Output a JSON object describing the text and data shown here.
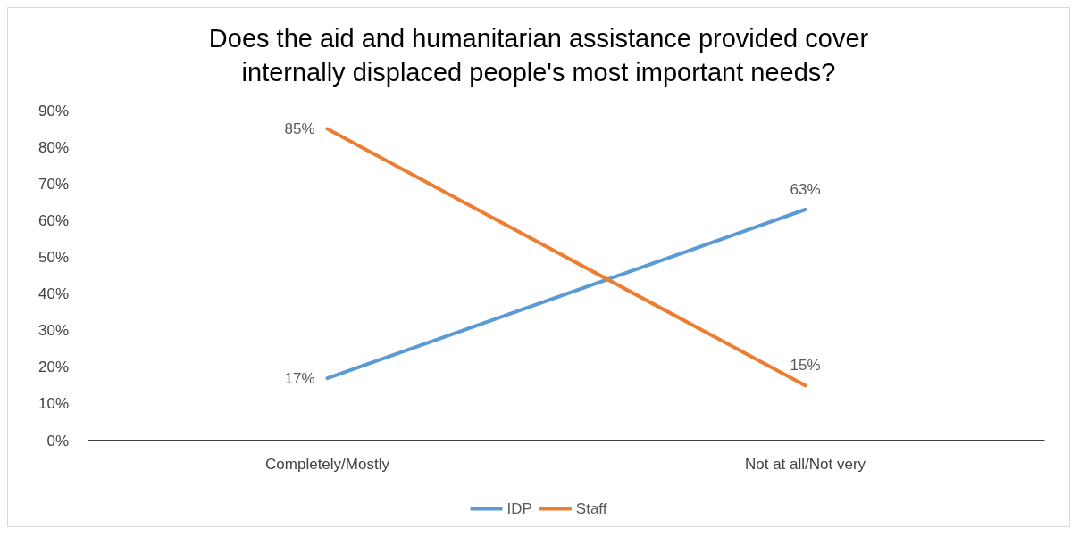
{
  "chart_data": {
    "type": "line",
    "title": "Does the aid and humanitarian assistance provided cover\ninternally displaced people's most important needs?",
    "categories": [
      "Completely/Mostly",
      "Not at all/Not very"
    ],
    "series": [
      {
        "name": "IDP",
        "color": "#5b9bd5",
        "values": [
          17,
          63
        ],
        "value_labels": [
          "17%",
          "63%"
        ]
      },
      {
        "name": "Staff",
        "color": "#ed7d31",
        "values": [
          85,
          15
        ],
        "value_labels": [
          "85%",
          "15%"
        ]
      }
    ],
    "ylim": [
      0,
      90
    ],
    "yticks": [
      {
        "value": 0,
        "label": "0%"
      },
      {
        "value": 10,
        "label": "10%"
      },
      {
        "value": 20,
        "label": "20%"
      },
      {
        "value": 30,
        "label": "30%"
      },
      {
        "value": 40,
        "label": "40%"
      },
      {
        "value": 50,
        "label": "50%"
      },
      {
        "value": 60,
        "label": "60%"
      },
      {
        "value": 70,
        "label": "70%"
      },
      {
        "value": 80,
        "label": "80%"
      },
      {
        "value": 90,
        "label": "90%"
      }
    ],
    "grid": false,
    "legend": "bottom",
    "marker": "none",
    "line_style": "solid"
  }
}
